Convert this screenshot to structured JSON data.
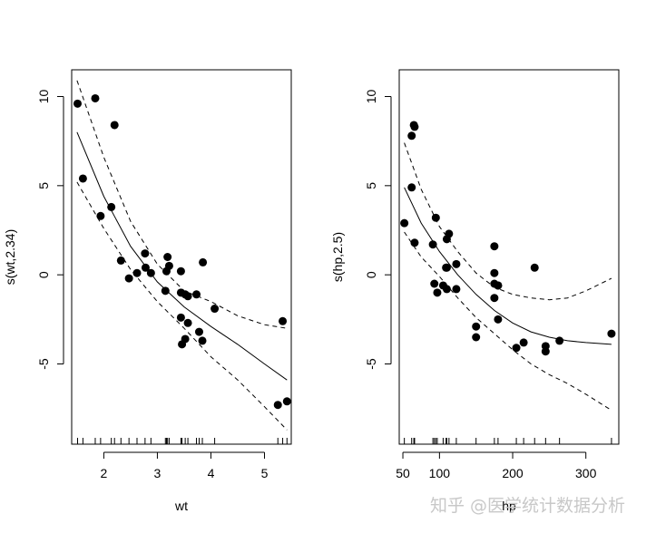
{
  "watermark": "知乎 @医学统计数据分析",
  "chart_data": [
    {
      "type": "line",
      "xlabel": "wt",
      "ylabel": "s(wt,2.34)",
      "xlim": [
        1.4,
        5.5
      ],
      "ylim": [
        -9.5,
        11.5
      ],
      "xticks": [
        2,
        3,
        4,
        5
      ],
      "yticks": [
        -5,
        0,
        5,
        10
      ],
      "grid": false,
      "rug": [
        1.51,
        1.61,
        1.84,
        1.94,
        2.14,
        2.2,
        2.32,
        2.47,
        2.62,
        2.77,
        2.88,
        3.15,
        3.17,
        3.19,
        3.22,
        3.44,
        3.46,
        3.52,
        3.57,
        3.73,
        3.78,
        3.84,
        4.07,
        5.25,
        5.34,
        5.42
      ],
      "points": {
        "x": [
          1.51,
          1.61,
          1.84,
          1.94,
          2.14,
          2.2,
          2.32,
          2.47,
          2.62,
          2.77,
          2.78,
          2.88,
          3.15,
          3.17,
          3.19,
          3.22,
          3.44,
          3.44,
          3.44,
          3.46,
          3.52,
          3.52,
          3.57,
          3.57,
          3.73,
          3.78,
          3.84,
          3.85,
          4.07,
          5.25,
          5.34,
          5.42
        ],
        "y": [
          9.6,
          5.4,
          9.9,
          3.3,
          3.8,
          8.4,
          0.8,
          -0.2,
          0.1,
          1.2,
          0.4,
          0.1,
          -0.9,
          0.2,
          1.0,
          0.5,
          0.2,
          -1.0,
          -2.4,
          -3.9,
          -3.6,
          -1.1,
          -1.2,
          -2.7,
          -1.1,
          -3.2,
          -3.7,
          0.7,
          -1.9,
          -7.3,
          -2.6,
          -7.1
        ]
      },
      "fit": {
        "x": [
          1.5,
          2.0,
          2.5,
          3.0,
          3.5,
          4.0,
          4.5,
          5.0,
          5.42
        ],
        "y": [
          8.0,
          4.4,
          1.6,
          -0.4,
          -1.8,
          -2.9,
          -3.9,
          -5.0,
          -5.9
        ]
      },
      "upper": {
        "x": [
          1.5,
          2.0,
          2.5,
          3.0,
          3.5,
          4.0,
          4.5,
          5.0,
          5.42
        ],
        "y": [
          10.9,
          6.6,
          3.0,
          0.6,
          -0.9,
          -1.5,
          -2.3,
          -2.8,
          -3.0
        ]
      },
      "lower": {
        "x": [
          1.5,
          2.0,
          2.5,
          3.0,
          3.5,
          4.0,
          4.5,
          5.0,
          5.42
        ],
        "y": [
          5.2,
          2.6,
          0.3,
          -1.5,
          -3.0,
          -4.6,
          -5.9,
          -7.4,
          -8.7
        ]
      }
    },
    {
      "type": "line",
      "xlabel": "hp",
      "ylabel": "s(hp,2.5)",
      "xlim": [
        45,
        345
      ],
      "ylim": [
        -9.5,
        11.5
      ],
      "xticks": [
        50,
        100,
        200,
        300
      ],
      "yticks": [
        -5,
        0,
        5,
        10
      ],
      "grid": false,
      "rug": [
        52,
        62,
        65,
        66,
        91,
        93,
        95,
        97,
        105,
        109,
        110,
        113,
        123,
        150,
        175,
        180,
        205,
        215,
        230,
        245,
        264,
        335
      ],
      "points": {
        "x": [
          52,
          62,
          62,
          65,
          66,
          66,
          91,
          93,
          95,
          97,
          105,
          109,
          110,
          110,
          110,
          113,
          123,
          123,
          150,
          150,
          175,
          175,
          175,
          175,
          180,
          180,
          180,
          205,
          215,
          230,
          245,
          245,
          264,
          335
        ],
        "y": [
          2.9,
          4.9,
          7.8,
          8.4,
          1.8,
          8.3,
          1.7,
          -0.5,
          3.2,
          -1.0,
          -0.6,
          0.4,
          2.0,
          -0.8,
          0.4,
          2.3,
          -0.8,
          0.6,
          -2.9,
          -3.5,
          -1.3,
          0.1,
          -0.5,
          1.6,
          -0.6,
          -2.5,
          -0.6,
          -4.1,
          -3.8,
          0.4,
          -4.3,
          -4.0,
          -3.7,
          -3.3
        ]
      },
      "fit": {
        "x": [
          52,
          75,
          100,
          125,
          150,
          175,
          200,
          225,
          250,
          275,
          300,
          335
        ],
        "y": [
          4.9,
          2.9,
          1.3,
          0.0,
          -1.1,
          -2.0,
          -2.7,
          -3.2,
          -3.5,
          -3.7,
          -3.8,
          -3.9
        ]
      },
      "upper": {
        "x": [
          52,
          75,
          100,
          125,
          150,
          175,
          200,
          225,
          250,
          275,
          300,
          335
        ],
        "y": [
          7.4,
          4.8,
          2.7,
          1.3,
          0.1,
          -0.7,
          -1.1,
          -1.3,
          -1.4,
          -1.3,
          -0.9,
          -0.2
        ]
      },
      "lower": {
        "x": [
          52,
          75,
          100,
          125,
          150,
          175,
          200,
          225,
          250,
          275,
          300,
          335
        ],
        "y": [
          2.4,
          1.0,
          -0.1,
          -1.3,
          -2.4,
          -3.3,
          -4.2,
          -5.0,
          -5.6,
          -6.1,
          -6.7,
          -7.6
        ]
      }
    }
  ]
}
